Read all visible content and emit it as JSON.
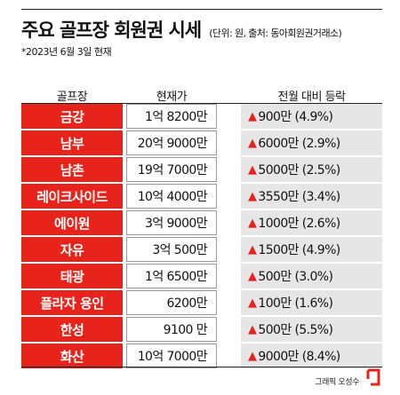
{
  "title": "주요 골프장 회원권 시세",
  "source": "(단위: 원, 출처: 동아회원권거래소)",
  "date_note": "*2023년 6월 3일 현재",
  "headers": {
    "name": "골프장",
    "price": "현재가",
    "change": "전월 대비 등락"
  },
  "colors": {
    "accent": "#e8231b",
    "change_bg": "#e6e6e6"
  },
  "icons": {
    "increase": "up-triangle-icon"
  },
  "credit": "그래픽 오성수",
  "chart_data": {
    "type": "table",
    "title": "주요 골프장 회원권 시세",
    "columns": [
      "골프장",
      "현재가",
      "전월 대비 등락"
    ],
    "rows": [
      {
        "name": "금강",
        "price": "1억 8200만",
        "arrow": "▲",
        "change": "900만 (4.9%)"
      },
      {
        "name": "남부",
        "price": "20억 9000만",
        "arrow": "▲",
        "change": "6000만 (2.9%)"
      },
      {
        "name": "남촌",
        "price": "19억 7000만",
        "arrow": "▲",
        "change": "5000만 (2.5%)"
      },
      {
        "name": "레이크사이드",
        "price": "10억 4000만",
        "arrow": "▲",
        "change": "3550만 (3.4%)"
      },
      {
        "name": "에이원",
        "price": "3억 9000만",
        "arrow": "▲",
        "change": "1000만 (2.6%)"
      },
      {
        "name": "자유",
        "price": "3억 500만",
        "arrow": "▲",
        "change": "1500만 (4.9%)"
      },
      {
        "name": "태광",
        "price": "1억 6500만",
        "arrow": "▲",
        "change": "500만 (3.0%)"
      },
      {
        "name": "플라자 용인",
        "price": "6200만",
        "arrow": "▲",
        "change": "100만 (1.6%)"
      },
      {
        "name": "한성",
        "price": "9100 만",
        "arrow": "▲",
        "change": "500만 (5.5%)"
      },
      {
        "name": "화산",
        "price": "10억 7000만",
        "arrow": "▲",
        "change": "9000만 (8.4%)"
      }
    ]
  }
}
